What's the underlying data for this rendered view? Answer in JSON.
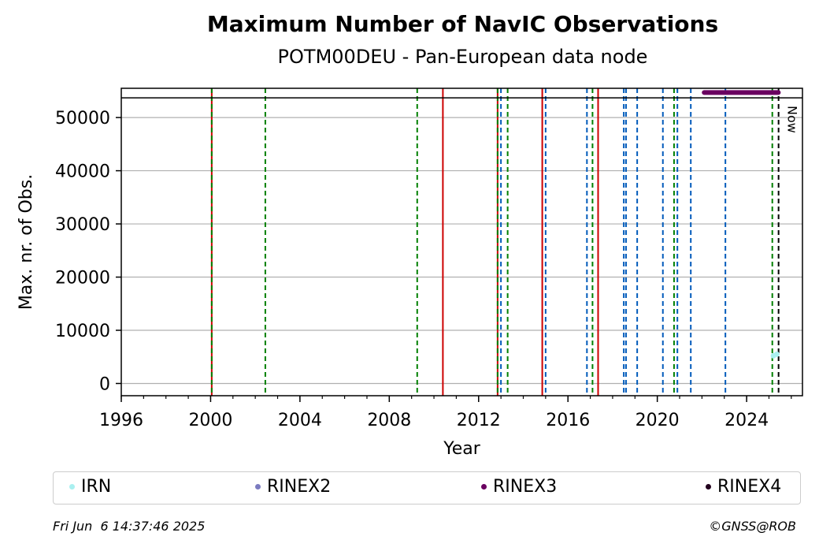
{
  "chart_data": {
    "type": "scatter",
    "title": "Maximum Number of NavIC Observations",
    "subtitle": "POTM00DEU - Pan-European data node",
    "xlabel": "Year",
    "ylabel": "Max. nr. of Obs.",
    "xlim": [
      1996,
      2026.5
    ],
    "ylim": [
      -2300,
      55500
    ],
    "xticks": [
      1996,
      2000,
      2004,
      2008,
      2012,
      2016,
      2020,
      2024
    ],
    "yticks": [
      0,
      10000,
      20000,
      30000,
      40000,
      50000
    ],
    "grid": "horizontal",
    "hline": 53700,
    "now_marker": {
      "x": 2025.43,
      "label": "Now"
    },
    "vlines_red_solid": [
      2000.05,
      2010.4,
      2012.85,
      2014.85,
      2017.35
    ],
    "vlines_green_dashed": [
      2000.05,
      2002.45,
      2009.25,
      2012.85,
      2013.3,
      2017.1,
      2020.75,
      2025.15
    ],
    "vlines_blue_dashed": [
      2013.0,
      2015.0,
      2016.85,
      2018.5,
      2018.6,
      2019.1,
      2020.25,
      2020.9,
      2021.5,
      2023.05
    ],
    "series": [
      {
        "name": "IRN",
        "color": "#aaf0f0",
        "points": [
          [
            2025.2,
            5200
          ],
          [
            2025.35,
            5500
          ]
        ]
      },
      {
        "name": "RINEX2",
        "color": "#7b7bc0",
        "points": []
      },
      {
        "name": "RINEX3",
        "color": "#6a0060",
        "line": [
          2022.1,
          2025.42
        ],
        "value": 54700
      },
      {
        "name": "RINEX4",
        "color": "#22001e",
        "points": []
      }
    ]
  },
  "footer": {
    "timestamp": "Fri Jun  6 14:37:46 2025",
    "credit": "©GNSS@ROB"
  },
  "colors": {
    "red": "#cc0000",
    "green": "#008000",
    "blue": "#005bbb",
    "grid": "#b0b0b0"
  }
}
